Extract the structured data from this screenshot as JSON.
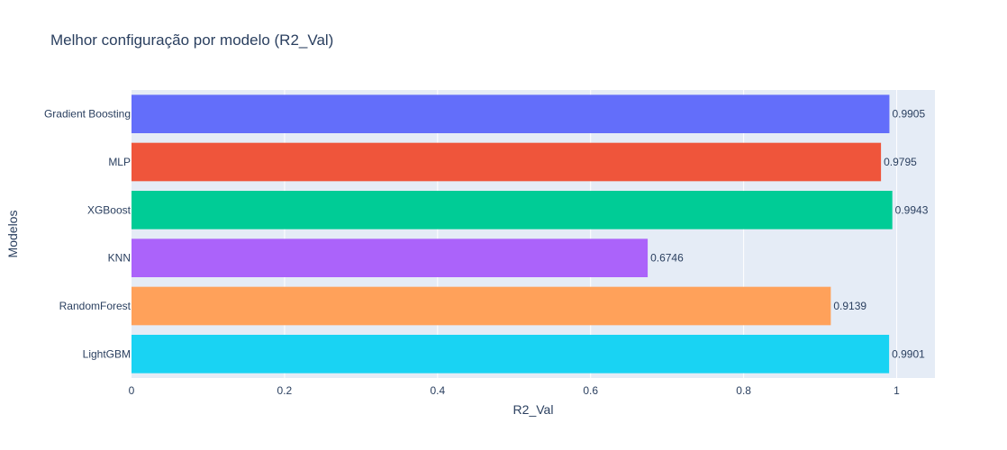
{
  "chart_data": {
    "type": "bar",
    "orientation": "horizontal",
    "title": "Melhor configuração por modelo (R2_Val)",
    "xlabel": "R2_Val",
    "ylabel": "Modelos",
    "xlim": [
      0,
      1.05
    ],
    "xticks": [
      0,
      0.2,
      0.4,
      0.6,
      0.8,
      1
    ],
    "xtick_labels": [
      "0",
      "0.2",
      "0.4",
      "0.6",
      "0.8",
      "1"
    ],
    "grid": true,
    "categories": [
      "Gradient Boosting",
      "MLP",
      "XGBoost",
      "KNN",
      "RandomForest",
      "LightGBM"
    ],
    "values": [
      0.9905,
      0.9795,
      0.9943,
      0.6746,
      0.9139,
      0.9901
    ],
    "value_labels": [
      "0.9905",
      "0.9795",
      "0.9943",
      "0.6746",
      "0.9139",
      "0.9901"
    ],
    "colors": [
      "#636efa",
      "#ef553b",
      "#00cc96",
      "#ab63fa",
      "#ffa15a",
      "#19d3f3"
    ],
    "plot_background": "#e5ecf6",
    "gridline_color": "#ffffff"
  }
}
